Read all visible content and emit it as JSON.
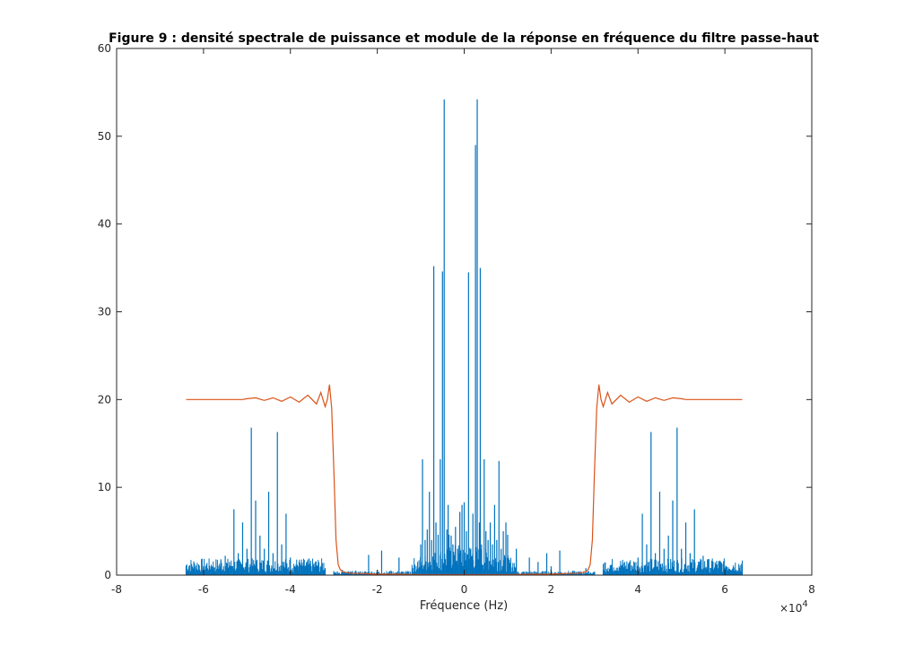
{
  "chart_data": {
    "type": "line",
    "title": "Figure 9 : densité spectrale de puissance et module de la réponse en fréquence du filtre passe-haut",
    "xlabel": "Fréquence (Hz)",
    "ylabel": "",
    "x_exponent_base": "×10",
    "x_exponent_power": "4",
    "xlim": [
      -80000,
      80000
    ],
    "ylim": [
      0,
      60
    ],
    "x_ticks": [
      -80000,
      -60000,
      -40000,
      -20000,
      0,
      20000,
      40000,
      60000,
      80000
    ],
    "x_tick_labels": [
      "-8",
      "-6",
      "-4",
      "-2",
      "0",
      "2",
      "4",
      "6",
      "8"
    ],
    "y_ticks": [
      0,
      10,
      20,
      30,
      40,
      50,
      60
    ],
    "y_tick_labels": [
      "0",
      "10",
      "20",
      "30",
      "40",
      "50",
      "60"
    ],
    "grid": false,
    "colors": {
      "spectrum": "#0072BD",
      "filter": "#D95319"
    },
    "series": [
      {
        "kind": "stem",
        "color": "#0072BD",
        "x": [
          -64000,
          -62000,
          -60000,
          -58000,
          -56000,
          -55000,
          -54000,
          -53000,
          -52000,
          -51000,
          -50000,
          -49000,
          -48000,
          -47000,
          -46000,
          -45000,
          -44000,
          -43000,
          -42000,
          -41000,
          -40000,
          -38000,
          -36000,
          -34000,
          -32000,
          -30000,
          -28000,
          -25000,
          -22000,
          -20000,
          -19000,
          -17000,
          -15000,
          -12000,
          -10000,
          -9600,
          -9000,
          -8500,
          -8000,
          -7500,
          -7000,
          -6500,
          -6000,
          -5500,
          -5000,
          -4600,
          -4000,
          -3700,
          -3500,
          -3000,
          -2600,
          -2000,
          -1500,
          -1000,
          -500,
          0,
          500,
          1000,
          1500,
          2000,
          2600,
          3000,
          3500,
          3700,
          4000,
          4600,
          5000,
          5500,
          6000,
          6500,
          7000,
          7500,
          8000,
          8500,
          9000,
          9600,
          10000,
          12000,
          15000,
          17000,
          19000,
          20000,
          22000,
          25000,
          28000,
          30000,
          32000,
          34000,
          36000,
          38000,
          40000,
          41000,
          42000,
          43000,
          44000,
          45000,
          46000,
          47000,
          48000,
          49000,
          50000,
          51000,
          52000,
          53000,
          54000,
          55000,
          56000,
          58000,
          60000,
          62000,
          64000
        ],
        "y": [
          1.0,
          0.9,
          0.8,
          1.0,
          1.8,
          2.2,
          1.5,
          7.5,
          2.5,
          6.0,
          3.0,
          16.8,
          8.5,
          4.5,
          3.0,
          9.5,
          2.5,
          16.3,
          3.5,
          7.0,
          2.0,
          1.5,
          1.2,
          1.0,
          0.8,
          0.4,
          0.6,
          0.5,
          2.3,
          0.6,
          2.8,
          0.5,
          2.0,
          0.6,
          3.5,
          13.2,
          4.0,
          5.2,
          9.5,
          4.0,
          35.2,
          6.0,
          4.6,
          13.2,
          34.6,
          54.2,
          5.2,
          8.0,
          4.6,
          4.5,
          3.5,
          5.5,
          3.0,
          7.2,
          8.0,
          8.3,
          5.0,
          34.5,
          3.0,
          7.0,
          49.0,
          54.2,
          6.0,
          35.0,
          3.5,
          13.2,
          5.0,
          4.0,
          6.0,
          3.5,
          8.0,
          4.0,
          13.0,
          3.0,
          5.0,
          6.0,
          4.6,
          3.0,
          2.0,
          1.5,
          2.5,
          1.0,
          2.8,
          0.5,
          0.8,
          0.4,
          0.6,
          0.8,
          1.2,
          1.5,
          2.0,
          7.0,
          3.5,
          16.3,
          2.5,
          9.5,
          3.0,
          4.5,
          8.5,
          16.8,
          3.0,
          6.0,
          2.5,
          7.5,
          1.5,
          2.2,
          1.8,
          1.0,
          0.8,
          0.9,
          1.0
        ]
      },
      {
        "kind": "line",
        "color": "#D95319",
        "x": [
          -64000,
          -51000,
          -50000,
          -48000,
          -46000,
          -44000,
          -42000,
          -40000,
          -38000,
          -36000,
          -34000,
          -33000,
          -32000,
          -31500,
          -31000,
          -30500,
          -30000,
          -29500,
          -29000,
          -28500,
          -28000,
          -27500,
          -27000,
          -26000,
          -24000,
          -22000,
          -20000,
          -15000,
          -10000,
          -5000,
          0,
          5000,
          10000,
          15000,
          20000,
          22000,
          24000,
          26000,
          27000,
          27500,
          28000,
          28500,
          29000,
          29500,
          30000,
          30500,
          31000,
          31500,
          32000,
          33000,
          34000,
          36000,
          38000,
          40000,
          42000,
          44000,
          46000,
          48000,
          50000,
          51000,
          64000
        ],
        "y": [
          20.0,
          20.0,
          20.1,
          20.2,
          19.9,
          20.2,
          19.8,
          20.3,
          19.7,
          20.5,
          19.5,
          20.8,
          19.2,
          20.0,
          21.7,
          19.0,
          12.0,
          4.0,
          1.2,
          0.6,
          0.4,
          0.3,
          0.3,
          0.2,
          0.2,
          0.15,
          0.1,
          0.1,
          0.05,
          0.05,
          0.05,
          0.05,
          0.05,
          0.1,
          0.1,
          0.15,
          0.2,
          0.2,
          0.3,
          0.3,
          0.4,
          0.6,
          1.2,
          4.0,
          12.0,
          19.0,
          21.7,
          20.0,
          19.2,
          20.8,
          19.5,
          20.5,
          19.7,
          20.3,
          19.8,
          20.2,
          19.9,
          20.2,
          20.1,
          20.0,
          20.0
        ]
      }
    ]
  }
}
